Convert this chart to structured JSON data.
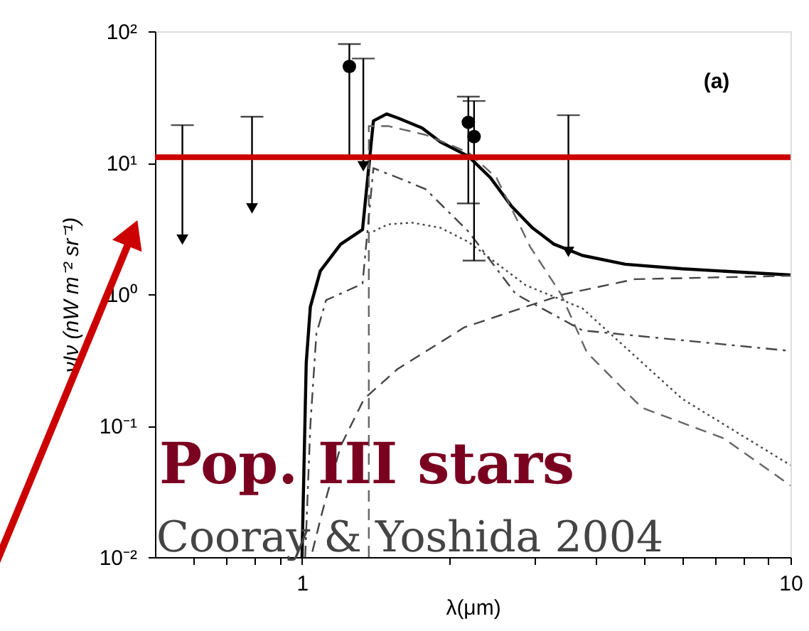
{
  "chart_data": {
    "type": "line",
    "xlabel": "λ(μm)",
    "ylabel": "νIν (nW m⁻² sr⁻¹)",
    "log": "xy",
    "grid": false,
    "xlim": [
      0.5,
      10
    ],
    "ylim": [
      0.01,
      100
    ],
    "xticks": [
      {
        "value": 0.6,
        "label": null
      },
      {
        "value": 0.7,
        "label": null
      },
      {
        "value": 0.8,
        "label": null
      },
      {
        "value": 0.9,
        "label": null
      },
      1,
      {
        "value": 2,
        "label": null
      },
      {
        "value": 3,
        "label": null
      },
      {
        "value": 4,
        "label": null
      },
      {
        "value": 5,
        "label": null
      },
      {
        "value": 6,
        "label": null
      },
      {
        "value": 7,
        "label": null
      },
      {
        "value": 8,
        "label": null
      },
      {
        "value": 9,
        "label": null
      },
      10
    ],
    "yticks": [
      {
        "value": 0.01,
        "label": "10⁻²"
      },
      {
        "value": 0.1,
        "label": "10⁻¹"
      },
      {
        "value": 1,
        "label": "10⁰"
      },
      {
        "value": 10,
        "label": "10¹"
      },
      {
        "value": 100,
        "label": "10²"
      }
    ],
    "series": [
      {
        "type": "line",
        "color": "#000000",
        "line_style": "solid",
        "x": [
          1.0,
          1.02,
          1.04,
          1.09,
          1.2,
          1.33,
          1.4,
          1.49,
          1.57,
          1.76,
          1.92,
          2.19,
          2.43,
          2.68,
          2.96,
          3.28,
          3.75,
          4.59,
          6.0,
          10
        ],
        "values": [
          0.01,
          0.3,
          0.8,
          1.5,
          2.4,
          3.1,
          20.8,
          23.5,
          21.9,
          18.4,
          14.4,
          11.2,
          7.7,
          4.7,
          3.2,
          2.4,
          1.97,
          1.69,
          1.56,
          1.4
        ]
      },
      {
        "type": "line",
        "color": "#666666",
        "line_style": "dashed",
        "x": [
          1.37,
          1.37,
          1.5,
          1.79,
          2.19,
          2.5,
          2.93,
          3.39,
          3.83,
          4.96,
          7.3,
          10
        ],
        "values": [
          0.01,
          19,
          19,
          16.3,
          12,
          7.7,
          2.3,
          1.0,
          0.36,
          0.137,
          0.08,
          0.035
        ]
      },
      {
        "type": "line",
        "color": "#444444",
        "line_style": "dashdot",
        "x": [
          1.015,
          1.04,
          1.07,
          1.12,
          1.33,
          1.4,
          1.57,
          1.79,
          2.19,
          2.74,
          3.75,
          10
        ],
        "values": [
          0.01,
          0.1,
          0.5,
          0.9,
          1.2,
          9.1,
          7.7,
          6.3,
          3.0,
          1.0,
          0.53,
          0.37
        ]
      },
      {
        "type": "line",
        "color": "#444444",
        "line_style": "dotted",
        "x": [
          1.4,
          1.5,
          1.68,
          1.92,
          2.19,
          2.87,
          3.75,
          6.0,
          10
        ],
        "values": [
          3.0,
          3.4,
          3.5,
          3.2,
          2.5,
          1.17,
          0.78,
          0.16,
          0.05
        ]
      },
      {
        "type": "line",
        "color": "#444444",
        "line_style": "dashed",
        "x": [
          1.05,
          1.1,
          1.2,
          1.34,
          1.57,
          2.15,
          2.63,
          3.44,
          4.8,
          10
        ],
        "values": [
          0.011,
          0.022,
          0.07,
          0.16,
          0.27,
          0.56,
          0.72,
          1.0,
          1.3,
          1.38
        ]
      },
      {
        "type": "scatter",
        "marker": "triangle",
        "color": "#000000",
        "x": [
          0.569,
          0.79,
          1.335,
          3.51
        ],
        "values": [
          2.6,
          4.5,
          9.4,
          2.1
        ],
        "errors": [
          [
            2.6,
            19.3
          ],
          [
            4.5,
            22.4
          ],
          [
            9.4,
            62
          ],
          [
            2.1,
            23
          ]
        ]
      },
      {
        "type": "scatter",
        "marker": "circle",
        "color": "#000000",
        "x": [
          1.25,
          2.19,
          2.25
        ],
        "values": [
          54,
          20.3,
          15.8
        ],
        "errors": [
          [
            11,
            80
          ],
          [
            4.9,
            31.8
          ],
          [
            1.8,
            29.5
          ]
        ]
      }
    ],
    "ref_lines": [
      {
        "axis": "y",
        "value": 11,
        "color": "#cc0000"
      }
    ],
    "annotations": [
      "(a)",
      "Pop. III stars",
      "Cooray & Yoshida 2004"
    ]
  }
}
